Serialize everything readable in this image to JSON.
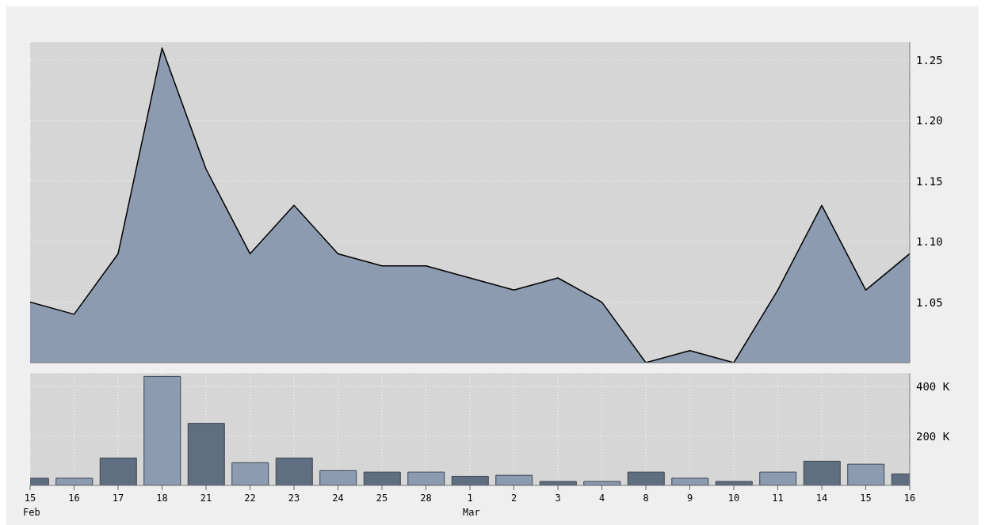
{
  "chart_data": [
    {
      "type": "area",
      "categories": [
        null,
        null,
        null,
        null,
        null,
        null,
        null,
        null,
        null,
        null,
        null,
        null,
        null,
        null,
        null,
        null,
        null,
        null,
        null,
        null,
        null
      ],
      "series": [
        {
          "color": "#8c9bb0",
          "values": [
            1.05,
            1.04,
            1.09,
            1.26,
            1.16,
            1.09,
            1.13,
            1.09,
            1.08,
            1.08,
            1.07,
            1.06,
            1.07,
            1.05,
            1.0,
            1.01,
            1.0,
            1.06,
            1.13,
            1.06,
            1.09
          ]
        }
      ],
      "ylim": [
        1.0,
        1.265
      ],
      "yticks": [
        1.05,
        {
          "value": 1.1,
          "label": "1.10"
        },
        1.15,
        {
          "value": 1.2,
          "label": "1.20"
        },
        1.25
      ],
      "grid": true,
      "tick_labels": "y"
    },
    {
      "type": "bar",
      "categories": [
        "15\nFeb",
        "16",
        "17",
        "18",
        "21",
        "22",
        "23",
        "24",
        "25",
        "28",
        "1\nMar",
        "2",
        "3",
        "4",
        "8",
        "9",
        "10",
        "11",
        "14",
        "15",
        "16"
      ],
      "values": [
        29000,
        29000,
        111000,
        441000,
        251000,
        92000,
        111000,
        60000,
        54000,
        54000,
        37000,
        41000,
        16000,
        16000,
        54000,
        29000,
        16000,
        54000,
        98000,
        86000,
        46000
      ],
      "colors": [
        "#5f6e80",
        "#8c9bb0",
        "#5f6e80",
        "#8c9bb0",
        "#5f6e80",
        "#8c9bb0",
        "#5f6e80",
        "#8c9bb0",
        "#5f6e80",
        "#8c9bb0",
        "#5f6e80",
        "#8c9bb0",
        "#5f6e80",
        "#8c9bb0",
        "#5f6e80",
        "#8c9bb0",
        "#5f6e80",
        "#8c9bb0",
        "#5f6e80",
        "#8c9bb0",
        "#5f6e80"
      ],
      "ylim": [
        0,
        455000
      ],
      "yticks": [
        {
          "value": 200000,
          "label": "200 K"
        },
        {
          "value": 400000,
          "label": "400 K"
        }
      ],
      "grid": true
    }
  ]
}
